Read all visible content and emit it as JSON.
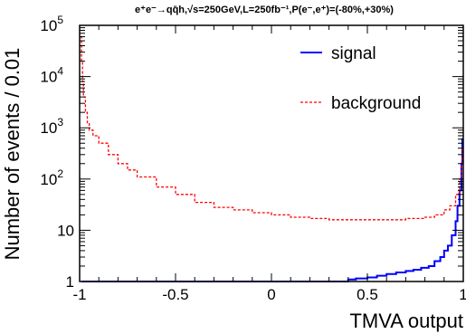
{
  "chart_data": {
    "type": "line",
    "title": "e⁺e⁻→qq̄h,√s=250GeV,L=250fb⁻¹,P(e⁻,e⁺)=(-80%,+30%)",
    "xlabel": "TMVA output",
    "ylabel": "Number of events / 0.01",
    "xlim": [
      -1,
      1
    ],
    "ylim": [
      1,
      100000
    ],
    "yscale": "log",
    "x_ticks": [
      {
        "value": -1,
        "label": "-1"
      },
      {
        "value": -0.5,
        "label": "-0.5"
      },
      {
        "value": 0,
        "label": "0"
      },
      {
        "value": 0.5,
        "label": "0.5"
      },
      {
        "value": 1,
        "label": "1"
      }
    ],
    "y_ticks": [
      {
        "value": 1,
        "label": "1"
      },
      {
        "value": 10,
        "label": "10"
      },
      {
        "value": 100,
        "label": "10",
        "exp": "2"
      },
      {
        "value": 1000,
        "label": "10",
        "exp": "3"
      },
      {
        "value": 10000,
        "label": "10",
        "exp": "4"
      },
      {
        "value": 100000,
        "label": "10",
        "exp": "5"
      }
    ],
    "legend_position": "top-right",
    "series": [
      {
        "name": "signal",
        "color": "#0000ff",
        "style": "solid",
        "x": [
          -0.99,
          0.38,
          0.4,
          0.44,
          0.5,
          0.55,
          0.6,
          0.65,
          0.7,
          0.74,
          0.78,
          0.82,
          0.85,
          0.88,
          0.9,
          0.92,
          0.94,
          0.96,
          0.97,
          0.98,
          0.99,
          0.995
        ],
        "y": [
          1,
          1,
          1.1,
          1.15,
          1.2,
          1.3,
          1.4,
          1.5,
          1.6,
          1.7,
          1.85,
          2.0,
          2.5,
          3,
          4,
          5,
          8,
          15,
          30,
          60,
          200,
          600
        ]
      },
      {
        "name": "background",
        "color": "#ff0000",
        "style": "dashed",
        "x": [
          -0.995,
          -0.99,
          -0.985,
          -0.98,
          -0.97,
          -0.96,
          -0.95,
          -0.93,
          -0.9,
          -0.85,
          -0.8,
          -0.75,
          -0.7,
          -0.6,
          -0.5,
          -0.4,
          -0.3,
          -0.2,
          -0.1,
          0,
          0.1,
          0.2,
          0.3,
          0.4,
          0.5,
          0.6,
          0.7,
          0.8,
          0.85,
          0.9,
          0.93,
          0.96,
          0.98,
          0.99,
          0.995
        ],
        "y": [
          60000,
          20000,
          8000,
          4000,
          2000,
          1200,
          900,
          700,
          500,
          300,
          200,
          150,
          110,
          70,
          50,
          35,
          28,
          25,
          22,
          20,
          18,
          17,
          16,
          16,
          16,
          16,
          17,
          18,
          20,
          25,
          30,
          50,
          100,
          200,
          400
        ]
      }
    ]
  }
}
